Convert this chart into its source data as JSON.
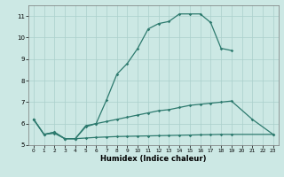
{
  "line1_x": [
    0,
    1,
    2,
    3,
    4,
    5,
    6,
    7,
    8,
    9,
    10,
    11,
    12,
    13,
    14,
    15,
    16,
    17,
    18,
    19
  ],
  "line1_y": [
    6.2,
    5.5,
    5.6,
    5.3,
    5.3,
    5.9,
    6.0,
    7.1,
    8.3,
    8.8,
    9.5,
    10.4,
    10.65,
    10.75,
    11.1,
    11.1,
    11.1,
    10.7,
    9.5,
    9.4
  ],
  "line2_x": [
    0,
    1,
    2,
    3,
    4,
    5,
    6,
    7,
    8,
    9,
    10,
    11,
    12,
    13,
    14,
    15,
    16,
    17,
    18,
    19,
    21,
    23
  ],
  "line2_y": [
    6.2,
    5.5,
    5.6,
    5.3,
    5.3,
    5.85,
    6.0,
    6.1,
    6.2,
    6.3,
    6.4,
    6.5,
    6.6,
    6.65,
    6.75,
    6.85,
    6.9,
    6.95,
    7.0,
    7.05,
    6.2,
    5.5
  ],
  "line3_x": [
    0,
    1,
    2,
    3,
    4,
    5,
    6,
    7,
    8,
    9,
    10,
    11,
    12,
    13,
    14,
    15,
    16,
    17,
    18,
    19,
    23
  ],
  "line3_y": [
    6.2,
    5.5,
    5.55,
    5.3,
    5.3,
    5.33,
    5.36,
    5.38,
    5.4,
    5.41,
    5.42,
    5.43,
    5.44,
    5.45,
    5.46,
    5.47,
    5.48,
    5.49,
    5.5,
    5.5,
    5.5
  ],
  "color": "#2d7a6e",
  "bg_color": "#cce8e4",
  "grid_color": "#aacfcb",
  "xlabel": "Humidex (Indice chaleur)",
  "xlim": [
    -0.5,
    23.5
  ],
  "ylim": [
    5.0,
    11.5
  ],
  "yticks": [
    5,
    6,
    7,
    8,
    9,
    10,
    11
  ],
  "xticks": [
    0,
    1,
    2,
    3,
    4,
    5,
    6,
    7,
    8,
    9,
    10,
    11,
    12,
    13,
    14,
    15,
    16,
    17,
    18,
    19,
    20,
    21,
    22,
    23
  ]
}
